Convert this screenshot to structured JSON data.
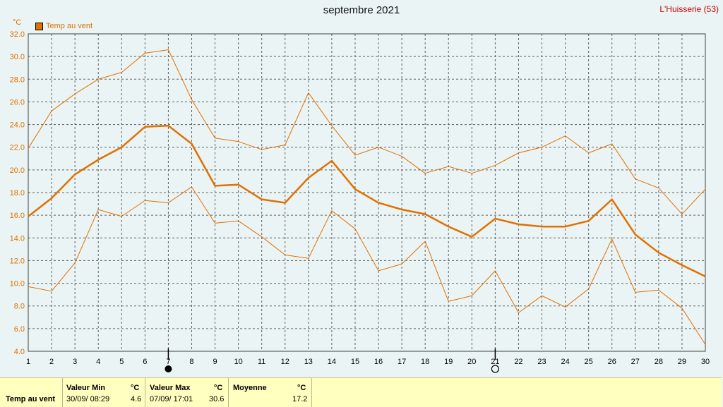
{
  "title": "septembre 2021",
  "station": "L'Huisserie (53)",
  "unit": "°C",
  "legend": "Temp au vent",
  "colors": {
    "series": "#e07000",
    "grid": "#606060",
    "background": "#eaf4f4",
    "footer_bg": "#ffffc0"
  },
  "moon_phases": [
    {
      "day": 7,
      "icon": "new-moon-icon"
    },
    {
      "day": 21,
      "icon": "full-moon-icon"
    }
  ],
  "chart_data": {
    "type": "line",
    "title": "septembre 2021",
    "ylabel": "°C",
    "xlabel": "",
    "xlim": [
      1,
      30
    ],
    "ylim": [
      4.0,
      32.0
    ],
    "grid": true,
    "legend_position": "top-left",
    "x": [
      1,
      2,
      3,
      4,
      5,
      6,
      7,
      8,
      9,
      10,
      11,
      12,
      13,
      14,
      15,
      16,
      17,
      18,
      19,
      20,
      21,
      22,
      23,
      24,
      25,
      26,
      27,
      28,
      29,
      30
    ],
    "series": [
      {
        "name": "Temp au vent",
        "role": "average",
        "values": [
          15.9,
          17.5,
          19.6,
          20.9,
          22.0,
          23.8,
          23.9,
          22.3,
          18.6,
          18.7,
          17.4,
          17.1,
          19.3,
          20.8,
          18.3,
          17.1,
          16.5,
          16.1,
          15.0,
          14.1,
          15.7,
          15.2,
          15.0,
          15.0,
          15.5,
          17.4,
          14.3,
          12.7,
          11.6,
          10.6
        ]
      },
      {
        "role": "max",
        "values": [
          21.9,
          25.2,
          26.7,
          28.0,
          28.6,
          30.3,
          30.6,
          26.2,
          22.8,
          22.5,
          21.8,
          22.2,
          26.8,
          23.9,
          21.3,
          22.0,
          21.2,
          19.7,
          20.3,
          19.7,
          20.4,
          21.5,
          22.0,
          23.0,
          21.5,
          22.3,
          19.2,
          18.4,
          16.1,
          18.3
        ]
      },
      {
        "role": "min",
        "values": [
          9.7,
          9.3,
          11.8,
          16.5,
          15.9,
          17.3,
          17.1,
          18.5,
          15.3,
          15.5,
          14.1,
          12.5,
          12.2,
          16.4,
          14.8,
          11.1,
          11.7,
          13.7,
          8.4,
          8.9,
          11.1,
          7.4,
          8.9,
          7.9,
          9.5,
          13.9,
          9.2,
          9.4,
          7.8,
          4.6
        ]
      }
    ]
  },
  "footer": {
    "row_label": "Temp au vent",
    "min": {
      "label": "Valeur Min",
      "unit": "°C",
      "datetime": "30/09/  08:29",
      "value": "4.6"
    },
    "max": {
      "label": "Valeur Max",
      "unit": "°C",
      "datetime": "07/09/  17:01",
      "value": "30.6"
    },
    "avg": {
      "label": "Moyenne",
      "unit": "°C",
      "value": "17.2"
    }
  }
}
